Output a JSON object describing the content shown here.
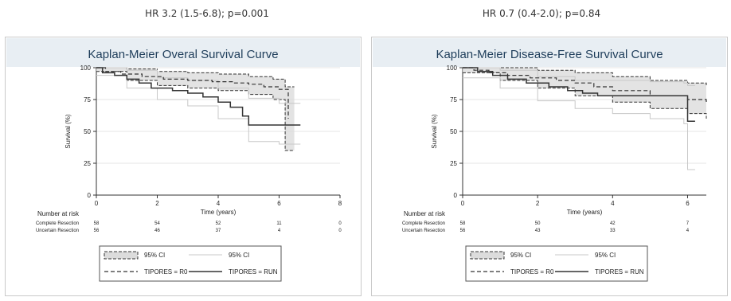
{
  "page": {
    "left_hr": "HR 3.2 (1.5-6.8); p=0.001",
    "right_hr": "HR 0.7 (0.4-2.0); p=0.84"
  },
  "chart_data": [
    {
      "type": "line",
      "title": "Kaplan-Meier Overal Survival Curve",
      "xlabel": "Time (years)",
      "ylabel": "Survival (%)",
      "xlim": [
        0,
        8
      ],
      "ylim": [
        0,
        100
      ],
      "xticks": [
        "0",
        "2",
        "4",
        "6",
        "8"
      ],
      "yticks": [
        "0",
        "25",
        "50",
        "75",
        "100"
      ],
      "grid": true,
      "series": [
        {
          "name": "TIPORES = R0",
          "style": "dashed",
          "x": [
            0,
            0.3,
            0.8,
            1.5,
            2.2,
            3.0,
            3.8,
            4.5,
            5.0,
            5.5,
            6.0,
            6.3
          ],
          "y": [
            100,
            97,
            95,
            93,
            91,
            90,
            89,
            88,
            87,
            85,
            83,
            60
          ]
        },
        {
          "name": "TIPORES = RUN",
          "style": "solid",
          "x": [
            0,
            0.2,
            0.6,
            1.0,
            1.4,
            1.8,
            2.5,
            3.0,
            3.5,
            4.0,
            4.4,
            4.8,
            5.0,
            6.0,
            6.7
          ],
          "y": [
            100,
            96,
            94,
            91,
            88,
            84,
            82,
            80,
            77,
            73,
            69,
            62,
            55,
            55,
            55
          ]
        }
      ],
      "ci_bands": [
        {
          "name": "95% CI",
          "x": [
            0,
            1.0,
            2.0,
            3.0,
            4.0,
            5.0,
            5.8,
            6.2,
            6.5
          ],
          "lower": [
            97,
            90,
            86,
            84,
            82,
            79,
            75,
            35,
            35
          ],
          "upper": [
            100,
            99,
            97,
            96,
            95,
            93,
            91,
            85,
            85
          ]
        },
        {
          "name": "95% CI",
          "x": [
            0,
            1.0,
            2.0,
            3.0,
            4.0,
            5.0,
            6.0,
            6.7
          ],
          "lower": [
            94,
            84,
            75,
            70,
            60,
            42,
            40,
            40
          ],
          "upper": [
            100,
            98,
            92,
            90,
            84,
            76,
            72,
            72
          ]
        }
      ],
      "risk_table": {
        "header": "Number at risk",
        "rows": [
          {
            "label": "Complete Resection",
            "values": [
              "58",
              "54",
              "52",
              "11",
              "0"
            ]
          },
          {
            "label": "Uncertain Resection",
            "values": [
              "56",
              "46",
              "37",
              "4",
              "0"
            ]
          }
        ]
      },
      "legend": {
        "placement": "bottom",
        "items": [
          "95% CI",
          "95% CI",
          "TIPORES = R0",
          "TIPORES = RUN"
        ]
      }
    },
    {
      "type": "line",
      "title": "Kaplan-Meier Disease-Free Survival Curve",
      "xlabel": "Time (years)",
      "ylabel": "Survival (%)",
      "xlim": [
        0,
        6.5
      ],
      "ylim": [
        0,
        100
      ],
      "xticks": [
        "0",
        "2",
        "4",
        "6"
      ],
      "yticks": [
        "0",
        "25",
        "50",
        "75",
        "100"
      ],
      "grid": true,
      "series": [
        {
          "name": "TIPORES = R0",
          "style": "dashed",
          "x": [
            0,
            0.3,
            0.7,
            1.2,
            1.8,
            2.5,
            3.0,
            3.5,
            4.0,
            5.0,
            6.0,
            6.5
          ],
          "y": [
            100,
            98,
            96,
            94,
            92,
            90,
            88,
            85,
            82,
            78,
            75,
            72
          ]
        },
        {
          "name": "TIPORES = RUN",
          "style": "solid",
          "x": [
            0,
            0.4,
            0.8,
            1.2,
            1.7,
            2.3,
            2.8,
            3.2,
            3.6,
            4.0,
            5.0,
            5.9,
            6.0,
            6.2
          ],
          "y": [
            100,
            97,
            94,
            91,
            88,
            85,
            82,
            80,
            78,
            78,
            78,
            78,
            58,
            58
          ]
        }
      ],
      "ci_bands": [
        {
          "name": "95% CI",
          "x": [
            0,
            1.0,
            2.0,
            3.0,
            4.0,
            5.0,
            6.0,
            6.5
          ],
          "lower": [
            96,
            90,
            84,
            78,
            73,
            68,
            64,
            60
          ],
          "upper": [
            100,
            100,
            98,
            96,
            93,
            90,
            88,
            86
          ]
        },
        {
          "name": "95% CI",
          "x": [
            0,
            1.0,
            2.0,
            3.0,
            4.0,
            5.0,
            5.9,
            6.0,
            6.2
          ],
          "lower": [
            92,
            84,
            74,
            68,
            64,
            60,
            56,
            20,
            20
          ],
          "upper": [
            100,
            98,
            93,
            90,
            90,
            89,
            88,
            86,
            86
          ]
        }
      ],
      "risk_table": {
        "header": "Number at risk",
        "rows": [
          {
            "label": "Complete Resection",
            "values": [
              "58",
              "50",
              "42",
              "7"
            ]
          },
          {
            "label": "Uncertain Resection",
            "values": [
              "56",
              "43",
              "33",
              "4"
            ]
          }
        ]
      },
      "legend": {
        "placement": "bottom",
        "items": [
          "95% CI",
          "95% CI",
          "TIPORES = R0",
          "TIPORES = RUN"
        ]
      }
    }
  ]
}
